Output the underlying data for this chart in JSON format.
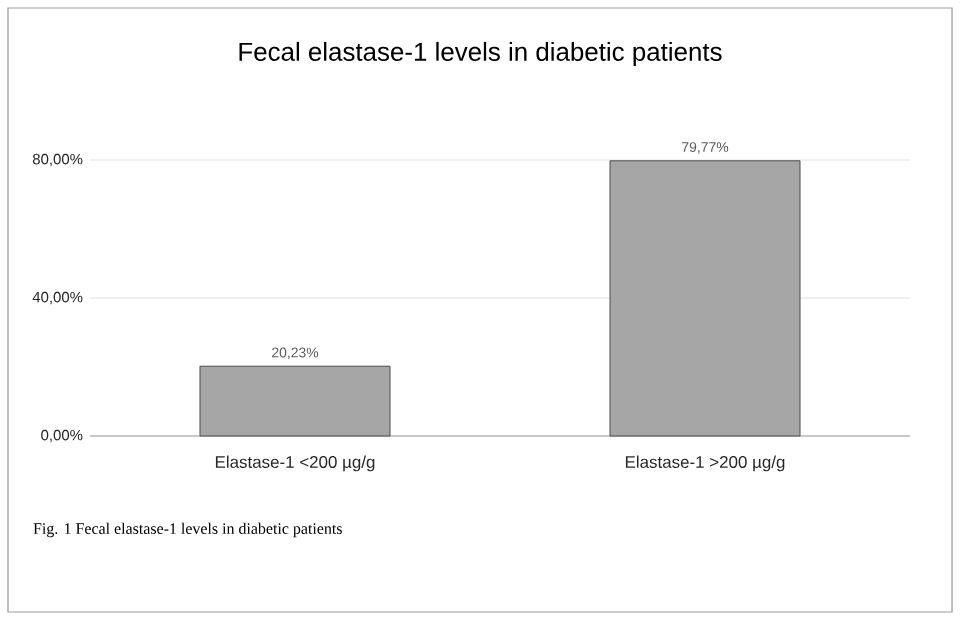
{
  "chart_data": {
    "type": "bar",
    "title": "Fecal elastase-1 levels in diabetic patients",
    "categories": [
      "Elastase-1 <200 µg/g",
      "Elastase-1 >200 µg/g"
    ],
    "values": [
      20.23,
      79.77
    ],
    "color": "#a6a6a6",
    "value_labels": [
      "20,23%",
      "79,77%"
    ],
    "ylim": [
      0,
      80
    ],
    "yticks": [
      {
        "value": 0,
        "label": "0,00%"
      },
      {
        "value": 40,
        "label": "40,00%"
      },
      {
        "value": 80,
        "label": "80,00%"
      }
    ],
    "grid": "y",
    "annotations": [
      "Fig. 1 Fecal elastase-1 levels in diabetic patients"
    ]
  }
}
